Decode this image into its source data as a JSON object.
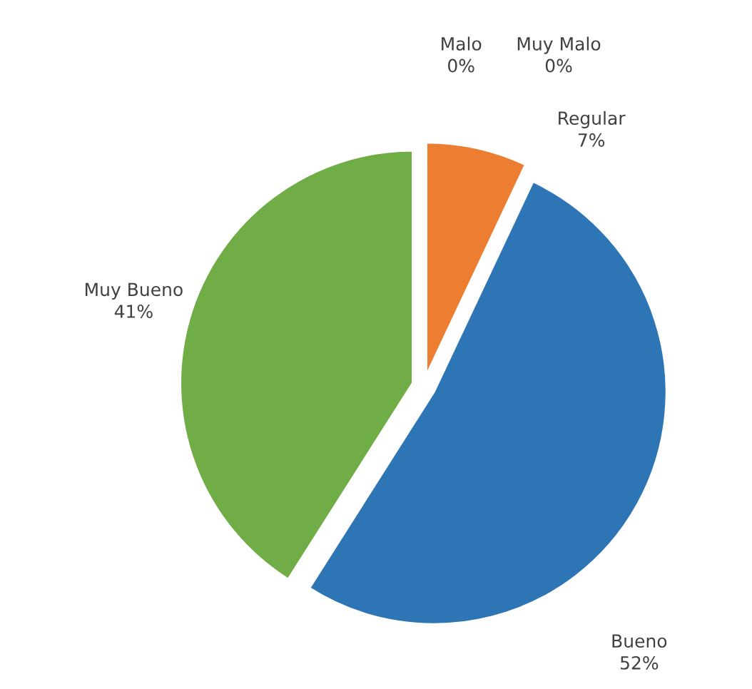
{
  "chart_data": {
    "type": "pie",
    "categories": [
      "Malo",
      "Muy Malo",
      "Regular",
      "Bueno",
      "Muy Bueno"
    ],
    "values": [
      0,
      0,
      7,
      52,
      41
    ],
    "colors": [
      "#a5a5a5",
      "#ffc000",
      "#ed7d31",
      "#2e75b6",
      "#70ad47"
    ],
    "value_labels": [
      "0%",
      "0%",
      "7%",
      "52%",
      "41%"
    ]
  }
}
